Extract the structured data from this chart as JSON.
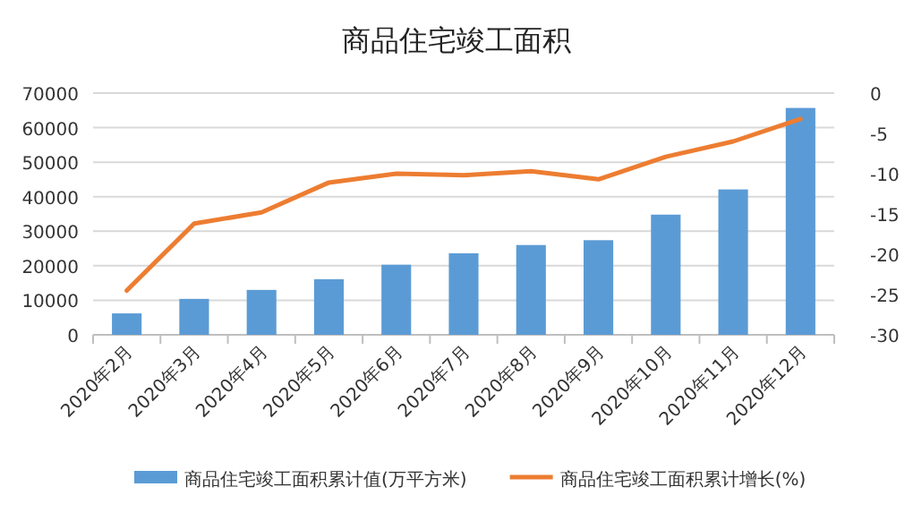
{
  "chart_data": {
    "type": "bar",
    "title": "商品住宅竣工面积",
    "categories": [
      "2020年2月",
      "2020年3月",
      "2020年4月",
      "2020年5月",
      "2020年6月",
      "2020年7月",
      "2020年8月",
      "2020年9月",
      "2020年10月",
      "2020年11月",
      "2020年12月"
    ],
    "series": [
      {
        "name": "商品住宅竣工面积累计值(万平方米)",
        "color": "#5b9bd5",
        "values": [
          6200,
          10400,
          13000,
          16100,
          20300,
          23600,
          26000,
          27400,
          34800,
          42100,
          65700
        ]
      },
      {
        "name": "商品住宅竣工面积累计增长(%)",
        "type": "line",
        "axis": "y2",
        "color": "#ed7d31",
        "values": [
          -24.5,
          -16.2,
          -14.8,
          -11.1,
          -10.0,
          -10.2,
          -9.7,
          -10.7,
          -7.9,
          -6.0,
          -3.2
        ]
      }
    ],
    "ylim": [
      0,
      70000
    ],
    "yticks": [
      0,
      10000,
      20000,
      30000,
      40000,
      50000,
      60000,
      70000
    ],
    "y2lim": [
      -30,
      0
    ],
    "y2ticks": [
      -30,
      -25,
      -20,
      -15,
      -10,
      -5,
      0
    ],
    "grid": "y",
    "legend": "bottom",
    "marker": "none",
    "line_style": "solid"
  }
}
